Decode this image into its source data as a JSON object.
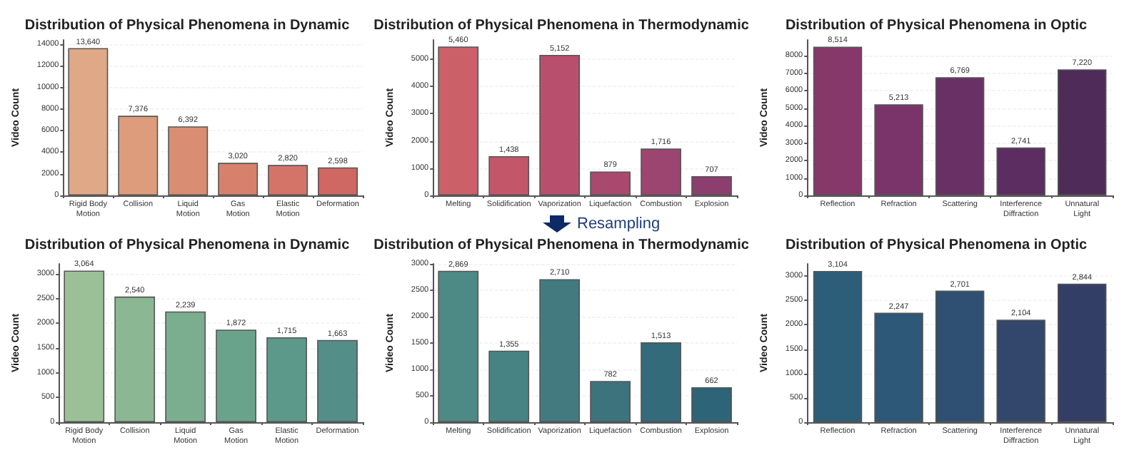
{
  "chart_data": [
    {
      "type": "bar",
      "title": "Distribution of Physical Phenomena in Dynamic",
      "ylabel": "Video Count",
      "categories": [
        "Rigid Body\nMotion",
        "Collision",
        "Liquid\nMotion",
        "Gas\nMotion",
        "Elastic\nMotion",
        "Deformation"
      ],
      "values": [
        13640,
        7376,
        6392,
        3020,
        2820,
        2598
      ],
      "value_labels": [
        "13,640",
        "7,376",
        "6,392",
        "3,020",
        "2,820",
        "2,598"
      ],
      "colors": [
        "#dfa886",
        "#dd9d7c",
        "#d98d73",
        "#d7816d",
        "#d47468",
        "#cf6763"
      ],
      "ylim": [
        0,
        14400
      ],
      "yticks": [
        0,
        2000,
        4000,
        6000,
        8000,
        10000,
        12000,
        14000
      ],
      "grid": "y"
    },
    {
      "type": "bar",
      "title": "Distribution of Physical Phenomena in Thermodynamic",
      "ylabel": "Video Count",
      "categories": [
        "Melting",
        "Solidification",
        "Vaporization",
        "Liquefaction",
        "Combustion",
        "Explosion"
      ],
      "values": [
        5460,
        1438,
        5152,
        879,
        1716,
        707
      ],
      "value_labels": [
        "5,460",
        "1,438",
        "5,152",
        "879",
        "1,716",
        "707"
      ],
      "colors": [
        "#cb6068",
        "#c4566a",
        "#b84f6c",
        "#a9496e",
        "#9b4570",
        "#8c3f6f"
      ],
      "ylim": [
        0,
        5700
      ],
      "yticks": [
        0,
        1000,
        2000,
        3000,
        4000,
        5000
      ],
      "grid": "y"
    },
    {
      "type": "bar",
      "title": "Distribution of Physical Phenomena in Optic",
      "ylabel": "Video Count",
      "categories": [
        "Reflection",
        "Refraction",
        "Scattering",
        "Interference\nDiffraction",
        "Unnatural\nLight"
      ],
      "values": [
        8514,
        5213,
        6769,
        2741,
        7220
      ],
      "value_labels": [
        "8,514",
        "5,213",
        "6,769",
        "2,741",
        "7,220"
      ],
      "colors": [
        "#86386b",
        "#7a346a",
        "#693066",
        "#5b2d60",
        "#4e2b59"
      ],
      "ylim": [
        0,
        8900
      ],
      "yticks": [
        0,
        1000,
        2000,
        3000,
        4000,
        5000,
        6000,
        7000,
        8000
      ],
      "grid": "y"
    },
    {
      "type": "bar",
      "title": "Distribution of Physical Phenomena in Dynamic",
      "ylabel": "Video Count",
      "categories": [
        "Rigid Body\nMotion",
        "Collision",
        "Liquid\nMotion",
        "Gas\nMotion",
        "Elastic\nMotion",
        "Deformation"
      ],
      "values": [
        3064,
        2540,
        2239,
        1872,
        1715,
        1663
      ],
      "value_labels": [
        "3,064",
        "2,540",
        "2,239",
        "1,872",
        "1,715",
        "1,663"
      ],
      "colors": [
        "#9bc097",
        "#8bb792",
        "#7bad8f",
        "#6aa38c",
        "#5d998a",
        "#548e88"
      ],
      "ylim": [
        0,
        3200
      ],
      "yticks": [
        0,
        500,
        1000,
        1500,
        2000,
        2500,
        3000
      ],
      "grid": "y"
    },
    {
      "type": "bar",
      "title": "Distribution of Physical Phenomena in Thermodynamic",
      "ylabel": "Video Count",
      "annotations": [
        "Resampling"
      ],
      "categories": [
        "Melting",
        "Solidification",
        "Vaporization",
        "Liquefaction",
        "Combustion",
        "Explosion"
      ],
      "values": [
        2869,
        1355,
        2710,
        782,
        1513,
        662
      ],
      "value_labels": [
        "2,869",
        "1,355",
        "2,710",
        "782",
        "1,513",
        "662"
      ],
      "colors": [
        "#4e8a85",
        "#488383",
        "#427a80",
        "#3c737d",
        "#336b7a",
        "#2e6478"
      ],
      "ylim": [
        0,
        3000
      ],
      "yticks": [
        0,
        500,
        1000,
        1500,
        2000,
        2500,
        3000
      ],
      "grid": "y"
    },
    {
      "type": "bar",
      "title": "Distribution of Physical Phenomena in Optic",
      "ylabel": "Video Count",
      "categories": [
        "Reflection",
        "Refraction",
        "Scattering",
        "Interference\nDiffraction",
        "Unnatural\nLight"
      ],
      "values": [
        3104,
        2247,
        2701,
        2104,
        2844
      ],
      "value_labels": [
        "3,104",
        "2,247",
        "2,701",
        "2,104",
        "2,844"
      ],
      "colors": [
        "#2c5e7a",
        "#2d5877",
        "#2f5072",
        "#33476c",
        "#333e67"
      ],
      "ylim": [
        0,
        3250
      ],
      "yticks": [
        0,
        500,
        1000,
        1500,
        2000,
        2500,
        3000
      ],
      "grid": "y"
    }
  ]
}
